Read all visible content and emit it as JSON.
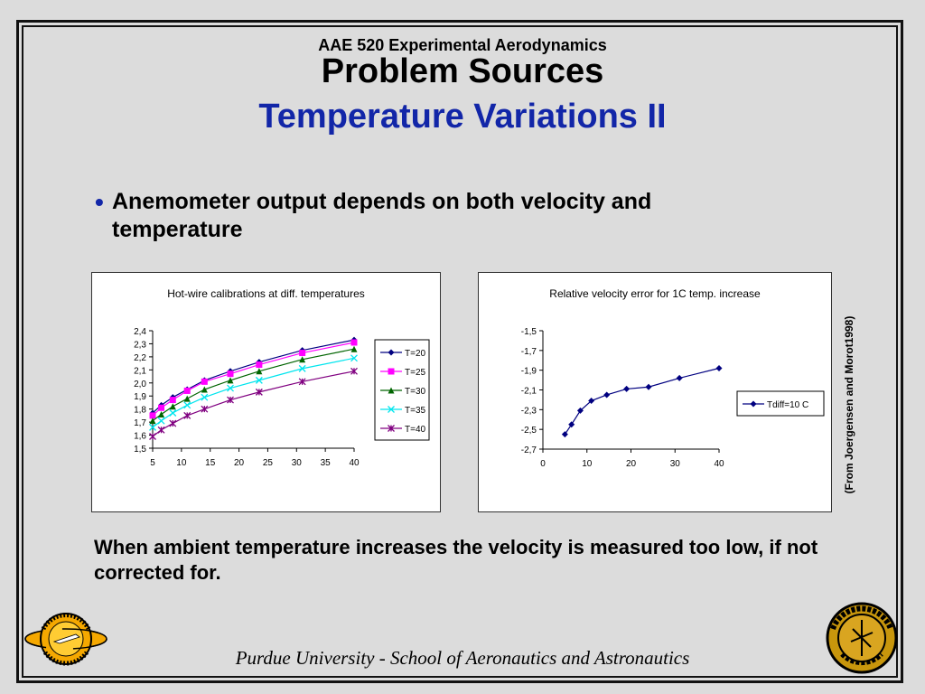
{
  "header": {
    "course": "AAE 520 Experimental Aerodynamics",
    "title": "Problem Sources",
    "subtitle": "Temperature Variations II"
  },
  "bullet": {
    "text": "Anemometer output depends on both velocity and temperature"
  },
  "conclusion": "When ambient temperature increases the velocity is measured too low, if not corrected for.",
  "side_credit": "(From Joergensen and Morot1998)",
  "footer": "Purdue University - School of Aeronautics and Astronautics",
  "logos": {
    "left": "Aeronautics & Astronautics",
    "right": "Purdue University"
  },
  "colors": {
    "subtitle": "#1226a8",
    "background": "#dcdcdc"
  },
  "chart_data": [
    {
      "type": "line",
      "title": "Hot-wire calibrations at diff. temperatures",
      "xlabel": "",
      "ylabel": "",
      "xlim": [
        5,
        40
      ],
      "ylim": [
        1.5,
        2.4
      ],
      "x_ticks": [
        "5",
        "10",
        "15",
        "20",
        "25",
        "30",
        "35",
        "40"
      ],
      "y_ticks": [
        "1,5",
        "1,6",
        "1,7",
        "1,8",
        "1,9",
        "2,0",
        "2,1",
        "2,2",
        "2,3",
        "2,4"
      ],
      "legend": "right",
      "grid": false,
      "x": [
        5,
        6.5,
        8.5,
        11,
        14,
        18.5,
        23.5,
        31,
        40
      ],
      "series": [
        {
          "name": "T=20",
          "color": "#000080",
          "marker": "diamond",
          "values": [
            1.77,
            1.83,
            1.89,
            1.95,
            2.02,
            2.09,
            2.16,
            2.25,
            2.33
          ]
        },
        {
          "name": "T=25",
          "color": "#ff00ff",
          "marker": "square",
          "values": [
            1.75,
            1.81,
            1.87,
            1.94,
            2.01,
            2.07,
            2.14,
            2.23,
            2.31
          ]
        },
        {
          "name": "T=30",
          "color": "#006400",
          "marker": "triangle",
          "values": [
            1.71,
            1.76,
            1.82,
            1.88,
            1.95,
            2.02,
            2.09,
            2.18,
            2.26
          ]
        },
        {
          "name": "T=35",
          "color": "#00e5ee",
          "marker": "x",
          "values": [
            1.66,
            1.71,
            1.77,
            1.83,
            1.89,
            1.96,
            2.02,
            2.11,
            2.19
          ]
        },
        {
          "name": "T=40",
          "color": "#800080",
          "marker": "star",
          "values": [
            1.59,
            1.64,
            1.69,
            1.75,
            1.8,
            1.87,
            1.93,
            2.01,
            2.09
          ]
        }
      ]
    },
    {
      "type": "line",
      "title": "Relative velocity error for 1C temp. increase",
      "xlabel": "",
      "ylabel": "",
      "xlim": [
        0,
        40
      ],
      "ylim": [
        -2.7,
        -1.5
      ],
      "x_ticks": [
        "0",
        "10",
        "20",
        "30",
        "40"
      ],
      "y_ticks": [
        "-2,7",
        "-2,5",
        "-2,3",
        "-2,1",
        "-1,9",
        "-1,7",
        "-1,5"
      ],
      "legend": "right",
      "grid": false,
      "x": [
        5,
        6.5,
        8.5,
        11,
        14.5,
        19,
        24,
        31,
        40
      ],
      "series": [
        {
          "name": "Tdiff=10 C",
          "color": "#000080",
          "marker": "diamond",
          "values": [
            -2.55,
            -2.45,
            -2.31,
            -2.21,
            -2.15,
            -2.09,
            -2.07,
            -1.98,
            -1.88
          ]
        }
      ]
    }
  ]
}
